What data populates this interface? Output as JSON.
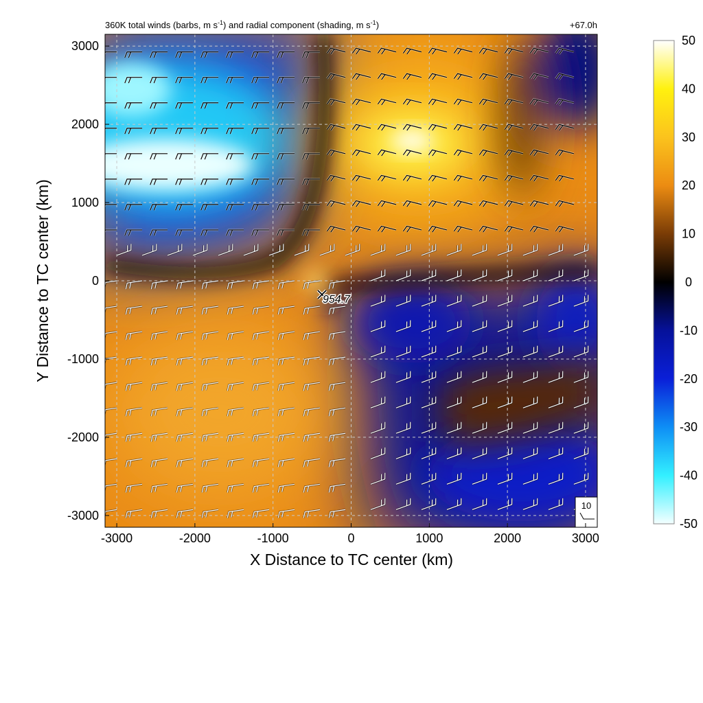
{
  "chart_data": {
    "type": "heatmap",
    "title": "360K total winds (barbs, m s-1) and radial component (shading, m s-1)",
    "title_parts": {
      "main": "360K total winds (barbs, m s",
      "sup1": "-1",
      "mid": ") and radial component (shading, m s",
      "sup2": "-1",
      "end": ")"
    },
    "forecast_time": "+67.0h",
    "xlabel": "X Distance to TC center (km)",
    "ylabel": "Y Distance to TC center (km)",
    "xlim": [
      -3150,
      3150
    ],
    "ylim": [
      -3150,
      3150
    ],
    "xticks": [
      -3000,
      -2000,
      -1000,
      0,
      1000,
      2000,
      3000
    ],
    "yticks": [
      -3000,
      -2000,
      -1000,
      0,
      1000,
      2000,
      3000
    ],
    "xtick_labels": [
      "-3000",
      "-2000",
      "-1000",
      "0",
      "1000",
      "2000",
      "3000"
    ],
    "ytick_labels": [
      "-3000",
      "-2000",
      "-1000",
      "0",
      "1000",
      "2000",
      "3000"
    ],
    "grid": true,
    "colorbar": {
      "range": [
        -50,
        50
      ],
      "ticks": [
        50,
        40,
        30,
        20,
        10,
        0,
        -10,
        -20,
        -30,
        -40,
        -50
      ],
      "tick_labels": [
        "50",
        "40",
        "30",
        "20",
        "10",
        "0",
        "-10",
        "-20",
        "-30",
        "-40",
        "-50"
      ],
      "colors": {
        "neg50": "#f4ffff",
        "neg40": "#33f0ff",
        "neg30": "#0e8ef5",
        "neg20": "#0a1fd8",
        "neg10": "#06119a",
        "zero": "#000000",
        "pos10": "#7a3c06",
        "pos20": "#ec8c12",
        "pos30": "#fbc31d",
        "pos40": "#fff10f",
        "pos50": "#ffffff"
      }
    },
    "regions": [
      {
        "name": "northwest-inflow",
        "center": [
          -2000,
          1500
        ],
        "value": -40
      },
      {
        "name": "northeast-outflow",
        "center": [
          900,
          1800
        ],
        "value": 35
      },
      {
        "name": "southwest-outflow",
        "center": [
          -1800,
          -1500
        ],
        "value": 20
      },
      {
        "name": "southeast-inflow",
        "center": [
          1500,
          -1800
        ],
        "value": -14
      }
    ],
    "center_marker": {
      "label": "954.7",
      "x": -400,
      "y": -200
    },
    "reference_barb": {
      "label": "10"
    }
  }
}
